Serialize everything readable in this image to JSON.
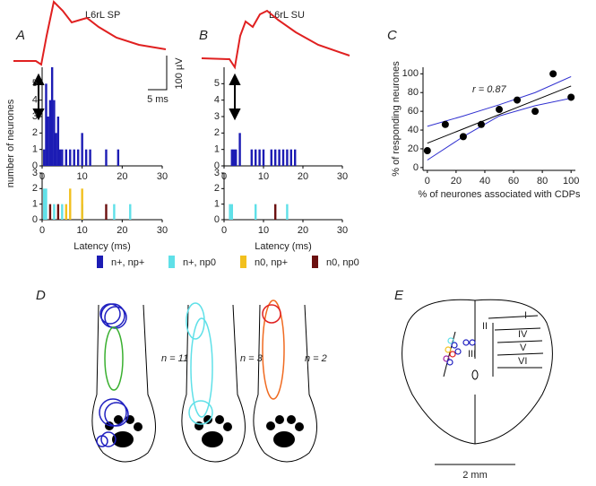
{
  "chart_data": [
    {
      "type": "histogram",
      "ylabel": "number of neurones",
      "xlim": [
        0,
        30
      ],
      "xticks": [
        0,
        10,
        20,
        30
      ],
      "ylim": [
        0,
        6
      ],
      "yticks": [
        0,
        1,
        2,
        3,
        4,
        5
      ],
      "series": [
        {
          "name": "n+, np+",
          "color": "#1c1cb4",
          "x": [
            0.5,
            1,
            1.5,
            2,
            2.5,
            3,
            3.5,
            4,
            4.5,
            5,
            6,
            7,
            8,
            9,
            10,
            11,
            12,
            16,
            19
          ],
          "values": [
            1,
            5,
            3,
            4,
            6,
            4,
            2,
            3,
            1,
            1,
            1,
            1,
            1,
            1,
            2,
            1,
            1,
            1,
            1
          ]
        }
      ]
    },
    {
      "type": "histogram",
      "xlabel": "Latency (ms)",
      "xlim": [
        0,
        30
      ],
      "xticks": [
        0,
        10,
        20,
        30
      ],
      "ylim": [
        0,
        3
      ],
      "yticks": [
        0,
        1,
        2,
        3
      ],
      "series": [
        {
          "name": "n+, np0",
          "color": "#5fe0e8",
          "x": [
            0.5,
            1,
            3,
            5,
            10,
            18,
            22
          ],
          "values": [
            2,
            2,
            1,
            1,
            1,
            1,
            1
          ]
        },
        {
          "name": "n0, np+",
          "color": "#f2c01e",
          "x": [
            6,
            7,
            10
          ],
          "values": [
            1,
            2,
            2
          ]
        },
        {
          "name": "n0, np0",
          "color": "#6b1010",
          "x": [
            2,
            4,
            16
          ],
          "values": [
            1,
            1,
            1
          ]
        }
      ]
    },
    {
      "type": "histogram",
      "xlim": [
        0,
        30
      ],
      "xticks": [
        0,
        10,
        20,
        30
      ],
      "ylim": [
        0,
        6
      ],
      "yticks": [
        0,
        1,
        2,
        3,
        4,
        5
      ],
      "series": [
        {
          "name": "n+, np+",
          "color": "#1c1cb4",
          "x": [
            2,
            2.5,
            3,
            4,
            7,
            8,
            9,
            10,
            12,
            13,
            14,
            15,
            16,
            17,
            18
          ],
          "values": [
            1,
            1,
            1,
            2,
            1,
            1,
            1,
            1,
            1,
            1,
            1,
            1,
            1,
            1,
            1
          ]
        }
      ]
    },
    {
      "type": "histogram",
      "xlabel": "Latency (ms)",
      "xlim": [
        0,
        30
      ],
      "xticks": [
        0,
        10,
        20,
        30
      ],
      "ylim": [
        0,
        3
      ],
      "yticks": [
        0,
        1,
        2,
        3
      ],
      "series": [
        {
          "name": "n+, np0",
          "color": "#5fe0e8",
          "x": [
            1.5,
            2,
            8,
            16
          ],
          "values": [
            1,
            1,
            1,
            1
          ]
        },
        {
          "name": "n0, np0",
          "color": "#6b1010",
          "x": [
            13
          ],
          "values": [
            1
          ]
        }
      ]
    },
    {
      "type": "scatter",
      "xlabel": "% of neurones associated with CDPs",
      "ylabel": "% of responding neurones",
      "annotation": "r = 0.87",
      "xlim": [
        -3,
        103
      ],
      "xticks": [
        0,
        20,
        40,
        60,
        80,
        100
      ],
      "ylim": [
        -3,
        107
      ],
      "yticks": [
        0,
        20,
        40,
        60,
        80,
        100
      ],
      "color": "#000000",
      "x": [
        0,
        12.5,
        25,
        37.5,
        50,
        62.5,
        75,
        87.5,
        100
      ],
      "values": [
        18,
        46,
        33,
        46,
        62,
        72,
        60,
        100,
        75
      ],
      "fit": {
        "color": "#000000",
        "x": [
          0,
          100
        ],
        "values": [
          26,
          87
        ]
      },
      "ci": [
        {
          "color": "#3030d0",
          "x": [
            0,
            25,
            50,
            75,
            100
          ],
          "values": [
            44,
            55,
            67,
            80,
            97
          ]
        },
        {
          "color": "#3030d0",
          "x": [
            0,
            25,
            50,
            75,
            100
          ],
          "values": [
            8,
            33,
            55,
            66,
            74
          ]
        }
      ]
    }
  ],
  "panel_labels": [
    "A",
    "B",
    "C",
    "D",
    "E"
  ],
  "trace_labels": [
    "L6rL SP",
    "L6rL SU"
  ],
  "scale_bar": {
    "voltage": "100 µV",
    "time": "5 ms"
  },
  "receptive_fields": [
    "n = 11",
    "n = 3",
    "n = 2"
  ],
  "laminae": [
    "I",
    "II",
    "III",
    "IV",
    "V",
    "VI"
  ],
  "section_scale": "2 mm"
}
